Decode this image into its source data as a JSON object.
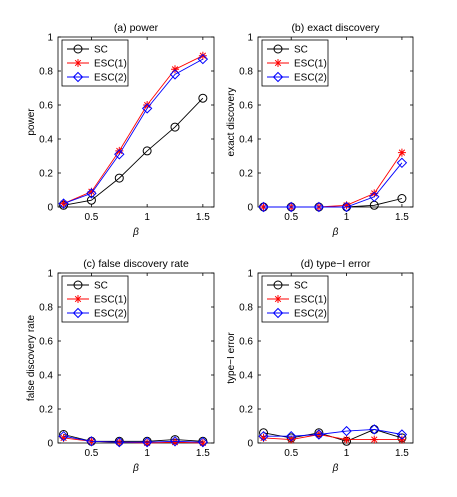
{
  "chart_data": [
    {
      "type": "line",
      "title": "(a) power",
      "xlabel": "β",
      "ylabel": "power",
      "xlim": [
        0.2,
        1.6
      ],
      "ylim": [
        0,
        1
      ],
      "xticks": [
        0.5,
        1,
        1.5
      ],
      "xtick_labels": [
        "0.5",
        "1",
        "1.5"
      ],
      "yticks": [
        0,
        0.2,
        0.4,
        0.6,
        0.8,
        1
      ],
      "ytick_labels": [
        "0",
        "0.2",
        "0.4",
        "0.6",
        "0.8",
        "1"
      ],
      "legend": "top-left",
      "grid": false,
      "x": [
        0.25,
        0.5,
        0.75,
        1,
        1.25,
        1.5
      ],
      "series": [
        {
          "name": "SC",
          "color": "#000000",
          "marker": "circle",
          "values": [
            0.01,
            0.04,
            0.17,
            0.33,
            0.47,
            0.64
          ]
        },
        {
          "name": "ESC(1)",
          "color": "#ff0000",
          "marker": "star",
          "values": [
            0.02,
            0.09,
            0.33,
            0.6,
            0.81,
            0.89
          ]
        },
        {
          "name": "ESC(2)",
          "color": "#0000ff",
          "marker": "diamond",
          "values": [
            0.02,
            0.08,
            0.31,
            0.58,
            0.78,
            0.87
          ]
        }
      ]
    },
    {
      "type": "line",
      "title": "(b) exact discovery",
      "xlabel": "β",
      "ylabel": "exact discovery",
      "xlim": [
        0.2,
        1.6
      ],
      "ylim": [
        0,
        1
      ],
      "xticks": [
        0.5,
        1,
        1.5
      ],
      "xtick_labels": [
        "0.5",
        "1",
        "1.5"
      ],
      "yticks": [
        0,
        0.2,
        0.4,
        0.6,
        0.8,
        1
      ],
      "ytick_labels": [
        "0",
        "0.2",
        "0.4",
        "0.6",
        "0.8",
        "1"
      ],
      "legend": "top-left",
      "grid": false,
      "x": [
        0.25,
        0.5,
        0.75,
        1,
        1.25,
        1.5
      ],
      "series": [
        {
          "name": "SC",
          "color": "#000000",
          "marker": "circle",
          "values": [
            0,
            0,
            0,
            0,
            0.01,
            0.05
          ]
        },
        {
          "name": "ESC(1)",
          "color": "#ff0000",
          "marker": "star",
          "values": [
            0,
            0,
            0,
            0.01,
            0.08,
            0.32
          ]
        },
        {
          "name": "ESC(2)",
          "color": "#0000ff",
          "marker": "diamond",
          "values": [
            0,
            0,
            0,
            0,
            0.06,
            0.26
          ]
        }
      ]
    },
    {
      "type": "line",
      "title": "(c) false discovery rate",
      "xlabel": "β",
      "ylabel": "false discovery rate",
      "xlim": [
        0.2,
        1.6
      ],
      "ylim": [
        0,
        1
      ],
      "xticks": [
        0.5,
        1,
        1.5
      ],
      "xtick_labels": [
        "0.5",
        "1",
        "1.5"
      ],
      "yticks": [
        0,
        0.2,
        0.4,
        0.6,
        0.8,
        1
      ],
      "ytick_labels": [
        "0",
        "0.2",
        "0.4",
        "0.6",
        "0.8",
        "1"
      ],
      "legend": "top-left",
      "grid": false,
      "x": [
        0.25,
        0.5,
        0.75,
        1,
        1.25,
        1.5
      ],
      "series": [
        {
          "name": "SC",
          "color": "#000000",
          "marker": "circle",
          "values": [
            0.05,
            0.01,
            0.01,
            0.01,
            0.02,
            0.01
          ]
        },
        {
          "name": "ESC(1)",
          "color": "#ff0000",
          "marker": "star",
          "values": [
            0.03,
            0.01,
            0.005,
            0,
            0.005,
            0
          ]
        },
        {
          "name": "ESC(2)",
          "color": "#0000ff",
          "marker": "diamond",
          "values": [
            0.04,
            0.01,
            0.005,
            0.005,
            0.01,
            0.005
          ]
        }
      ]
    },
    {
      "type": "line",
      "title": "(d) type−I error",
      "xlabel": "β",
      "ylabel": "type−I error",
      "xlim": [
        0.2,
        1.6
      ],
      "ylim": [
        0,
        1
      ],
      "xticks": [
        0.5,
        1,
        1.5
      ],
      "xtick_labels": [
        "0.5",
        "1",
        "1.5"
      ],
      "yticks": [
        0,
        0.2,
        0.4,
        0.6,
        0.8,
        1
      ],
      "ytick_labels": [
        "0",
        "0.2",
        "0.4",
        "0.6",
        "0.8",
        "1"
      ],
      "legend": "top-left",
      "grid": false,
      "x": [
        0.25,
        0.5,
        0.75,
        1,
        1.25,
        1.5
      ],
      "series": [
        {
          "name": "SC",
          "color": "#000000",
          "marker": "circle",
          "values": [
            0.06,
            0.03,
            0.06,
            0.01,
            0.08,
            0.03
          ]
        },
        {
          "name": "ESC(1)",
          "color": "#ff0000",
          "marker": "star",
          "values": [
            0.03,
            0.02,
            0.05,
            0.02,
            0.02,
            0.02
          ]
        },
        {
          "name": "ESC(2)",
          "color": "#0000ff",
          "marker": "diamond",
          "values": [
            0.04,
            0.04,
            0.05,
            0.07,
            0.08,
            0.05
          ]
        }
      ]
    }
  ]
}
